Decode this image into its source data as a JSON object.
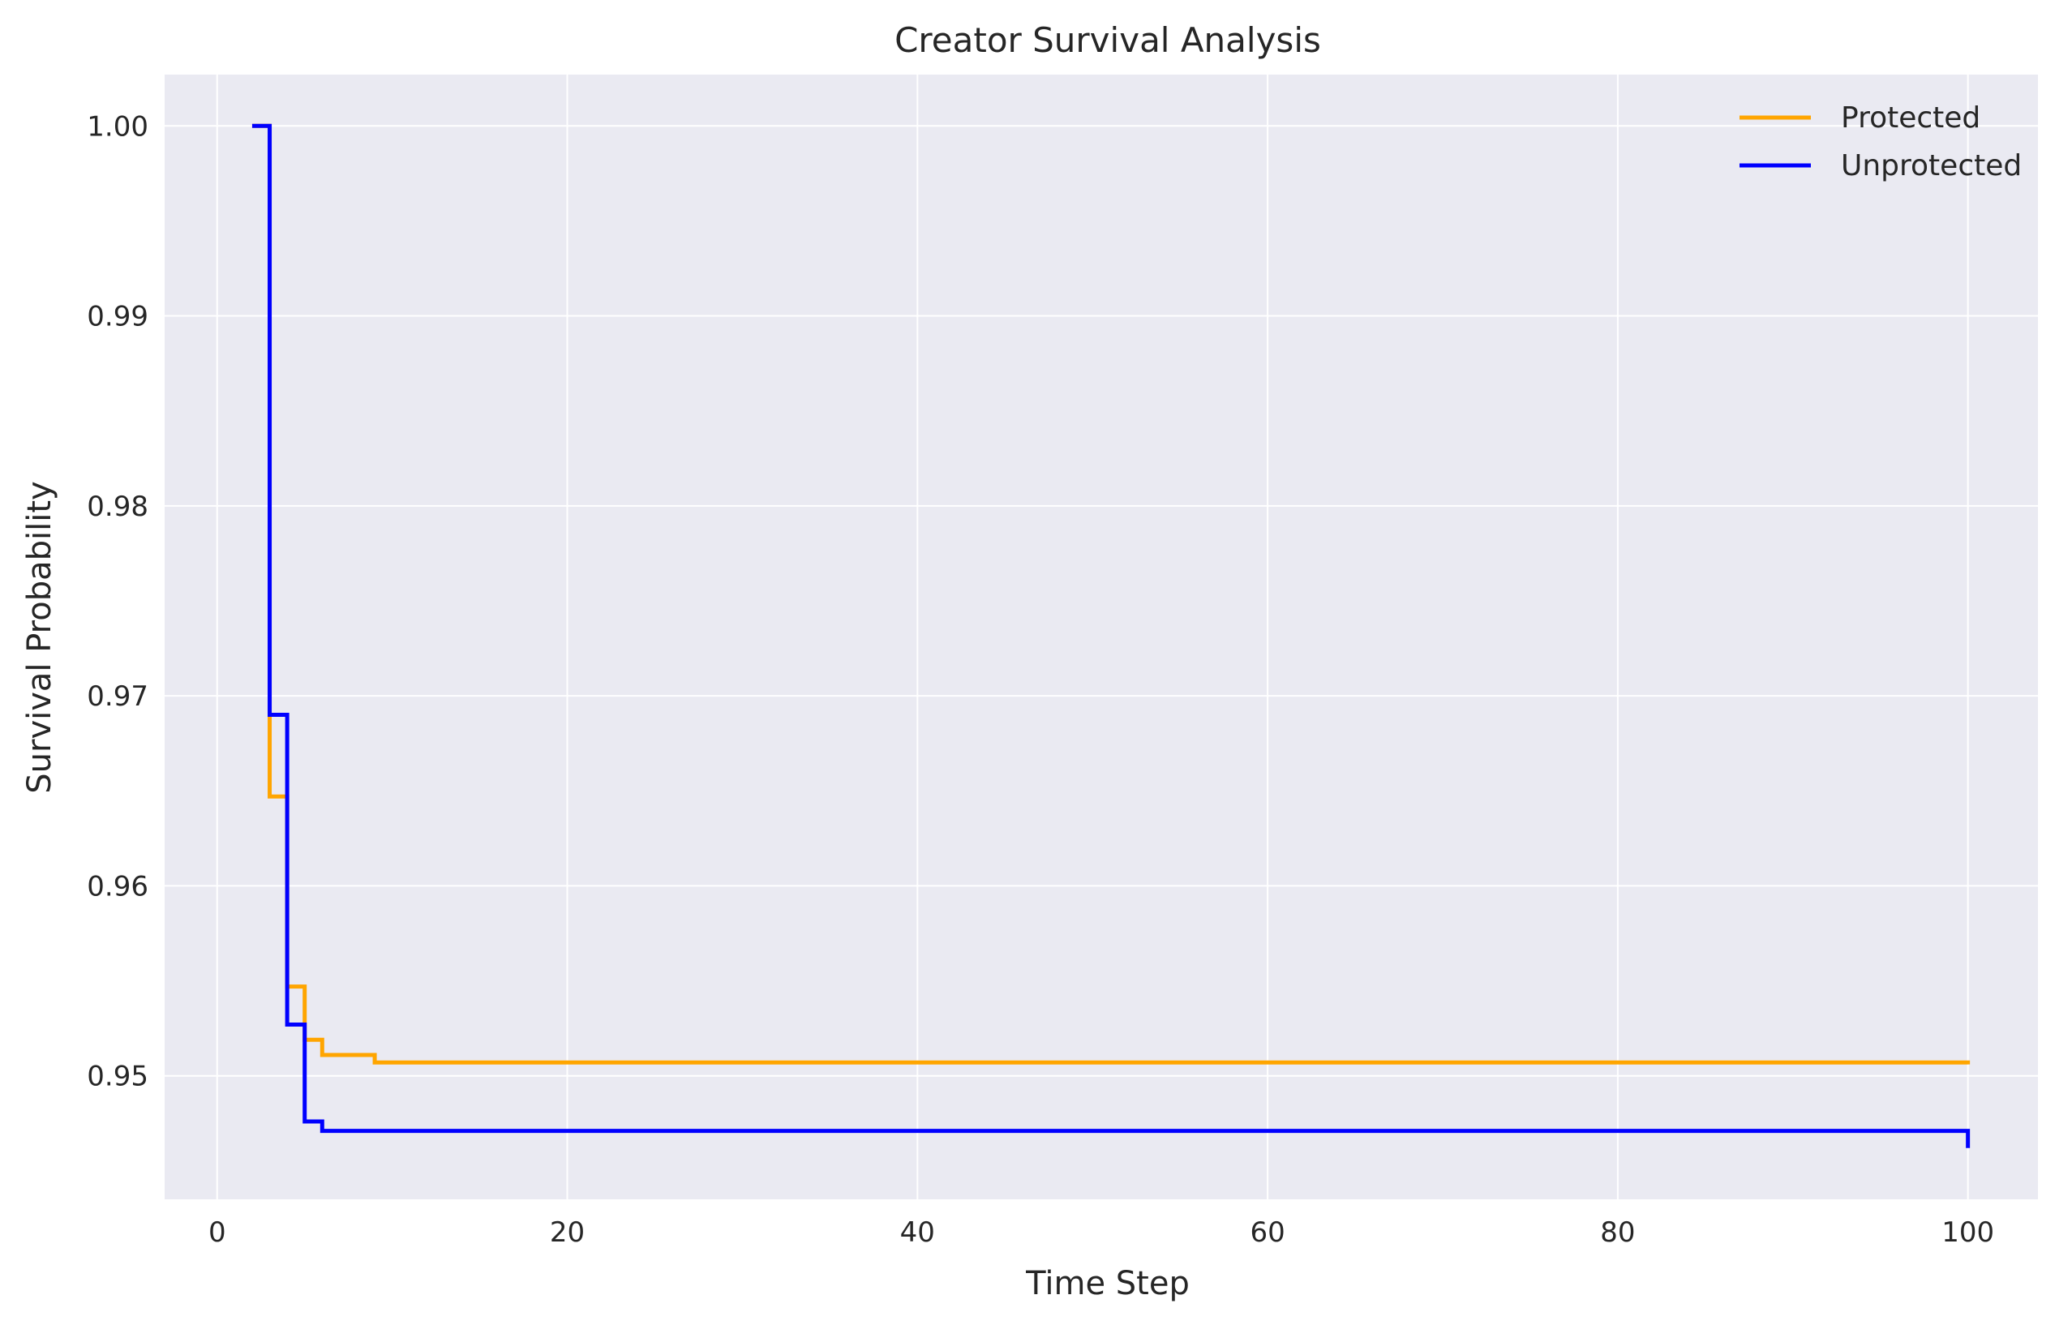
{
  "chart_data": {
    "type": "line",
    "title": "Creator Survival Analysis",
    "xlabel": "Time Step",
    "ylabel": "Survival Probability",
    "xlim": [
      -3,
      104
    ],
    "ylim": [
      0.9435,
      1.0027
    ],
    "xticks": [
      0,
      20,
      40,
      60,
      80,
      100
    ],
    "xtick_labels": [
      "0",
      "20",
      "40",
      "60",
      "80",
      "100"
    ],
    "yticks": [
      0.95,
      0.96,
      0.97,
      0.98,
      0.99,
      1.0
    ],
    "ytick_labels": [
      "0.95",
      "0.96",
      "0.97",
      "0.98",
      "0.99",
      "1.00"
    ],
    "grid": true,
    "background": "#eaeaf2",
    "legend_position": "top-right",
    "step": "post",
    "series": [
      {
        "name": "Protected",
        "color": "#ffa500",
        "x": [
          2,
          3,
          4,
          5,
          6,
          9,
          100
        ],
        "y": [
          1.0,
          0.9647,
          0.9547,
          0.9519,
          0.9511,
          0.9507,
          0.9506
        ]
      },
      {
        "name": "Unprotected",
        "color": "#0000ff",
        "x": [
          2,
          3,
          4,
          5,
          6,
          100
        ],
        "y": [
          1.0,
          0.969,
          0.9527,
          0.9476,
          0.9471,
          0.9462
        ]
      }
    ]
  }
}
